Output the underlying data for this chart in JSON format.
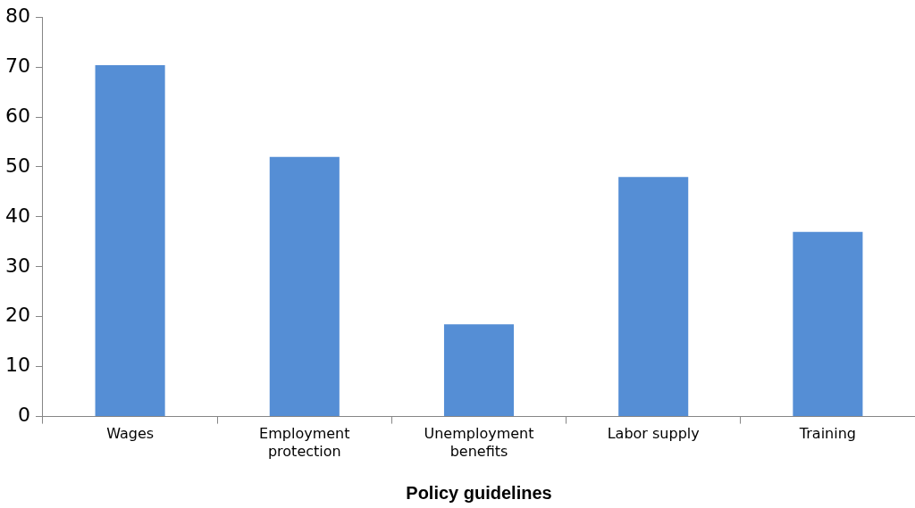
{
  "chart_data": {
    "type": "bar",
    "xlabel": "Policy guidelines",
    "categories": [
      "Wages",
      "Employment protection",
      "Unemployment benefits",
      "Labor supply",
      "Training"
    ],
    "values": [
      70.4,
      52,
      18.5,
      48,
      37
    ],
    "color": "#558ed5",
    "ylim": [
      0,
      80
    ],
    "yticks": [
      0,
      10,
      20,
      30,
      40,
      50,
      60,
      70,
      80
    ],
    "grid": false,
    "legend": false
  }
}
